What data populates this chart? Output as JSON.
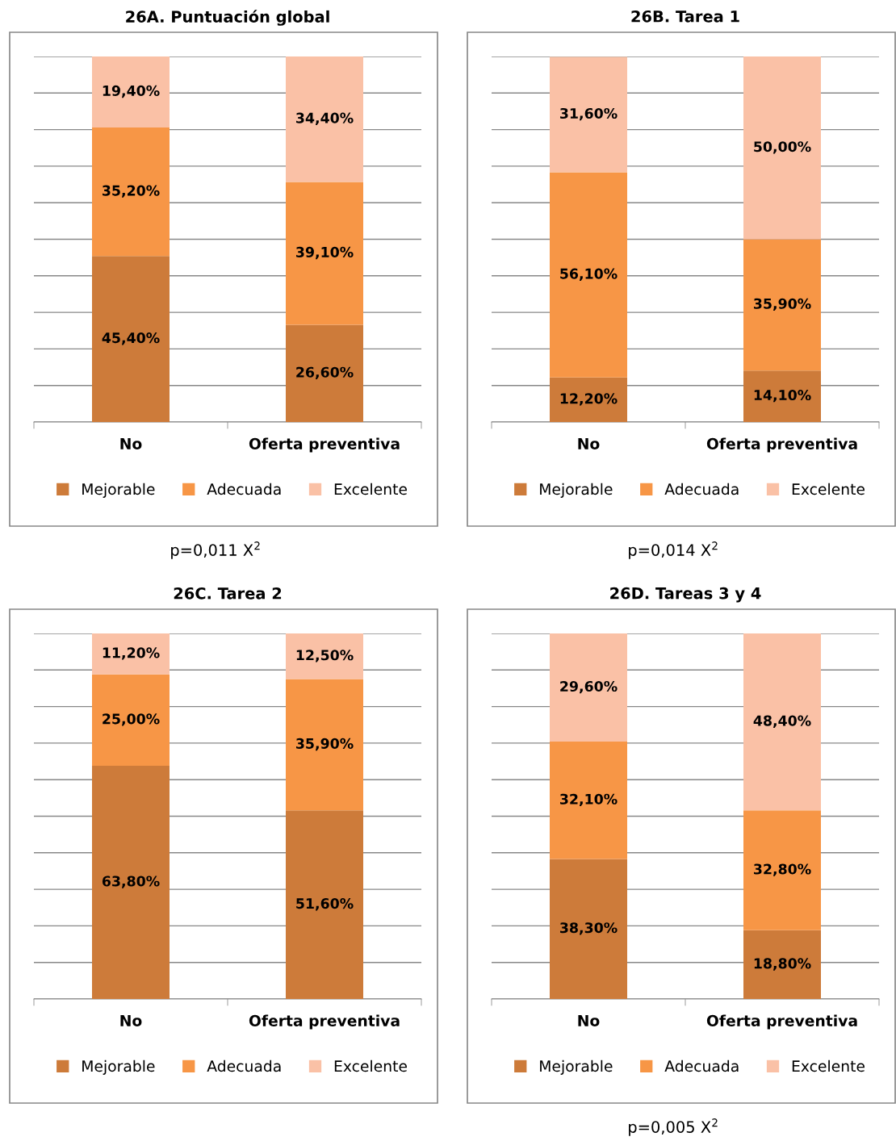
{
  "chart_data": [
    {
      "type": "bar",
      "stacked": true,
      "title": "26A. Puntuación global",
      "categories": [
        "No",
        "Oferta preventiva"
      ],
      "ylim": [
        0,
        100
      ],
      "yticks": [
        {
          "value": 0,
          "label": null
        },
        {
          "value": 10,
          "label": null
        },
        {
          "value": 20,
          "label": null
        },
        {
          "value": 30,
          "label": null
        },
        {
          "value": 40,
          "label": null
        },
        {
          "value": 50,
          "label": null
        },
        {
          "value": 60,
          "label": null
        },
        {
          "value": 70,
          "label": null
        },
        {
          "value": 80,
          "label": null
        },
        {
          "value": 90,
          "label": null
        },
        {
          "value": 100,
          "label": null
        }
      ],
      "grid": "y",
      "legend": "bottom",
      "data_labels": true,
      "series": [
        {
          "name": "Mejorable",
          "color": "#cd7b3a",
          "values": [
            45.4,
            26.6
          ],
          "value_labels": [
            "45,40%",
            "26,60%"
          ]
        },
        {
          "name": "Adecuada",
          "color": "#f79646",
          "values": [
            35.2,
            39.1
          ],
          "value_labels": [
            "35,20%",
            "39,10%"
          ]
        },
        {
          "name": "Excelente",
          "color": "#fac1a6",
          "values": [
            19.4,
            34.4
          ],
          "value_labels": [
            "19,40%",
            "34,40%"
          ]
        }
      ],
      "annotations": [
        "p=0,011 X$^{2}$"
      ]
    },
    {
      "type": "bar",
      "stacked": true,
      "title": "26B. Tarea 1",
      "categories": [
        "No",
        "Oferta preventiva"
      ],
      "ylim": [
        0,
        100
      ],
      "yticks": [
        {
          "value": 0,
          "label": null
        },
        {
          "value": 10,
          "label": null
        },
        {
          "value": 20,
          "label": null
        },
        {
          "value": 30,
          "label": null
        },
        {
          "value": 40,
          "label": null
        },
        {
          "value": 50,
          "label": null
        },
        {
          "value": 60,
          "label": null
        },
        {
          "value": 70,
          "label": null
        },
        {
          "value": 80,
          "label": null
        },
        {
          "value": 90,
          "label": null
        },
        {
          "value": 100,
          "label": null
        }
      ],
      "grid": "y",
      "legend": "bottom",
      "data_labels": true,
      "series": [
        {
          "name": "Mejorable",
          "color": "#cd7b3a",
          "values": [
            12.2,
            14.1
          ],
          "value_labels": [
            "12,20%",
            "14,10%"
          ]
        },
        {
          "name": "Adecuada",
          "color": "#f79646",
          "values": [
            56.1,
            35.9
          ],
          "value_labels": [
            "56,10%",
            "35,90%"
          ]
        },
        {
          "name": "Excelente",
          "color": "#fac1a6",
          "values": [
            31.6,
            50.0
          ],
          "value_labels": [
            "31,60%",
            "50,00%"
          ]
        }
      ],
      "annotations": [
        "p=0,014 X$^{2}$"
      ]
    },
    {
      "type": "bar",
      "stacked": true,
      "title": "26C. Tarea 2",
      "categories": [
        "No",
        "Oferta preventiva"
      ],
      "ylim": [
        0,
        100
      ],
      "yticks": [
        {
          "value": 0,
          "label": null
        },
        {
          "value": 10,
          "label": null
        },
        {
          "value": 20,
          "label": null
        },
        {
          "value": 30,
          "label": null
        },
        {
          "value": 40,
          "label": null
        },
        {
          "value": 50,
          "label": null
        },
        {
          "value": 60,
          "label": null
        },
        {
          "value": 70,
          "label": null
        },
        {
          "value": 80,
          "label": null
        },
        {
          "value": 90,
          "label": null
        },
        {
          "value": 100,
          "label": null
        }
      ],
      "grid": "y",
      "legend": "bottom",
      "data_labels": true,
      "series": [
        {
          "name": "Mejorable",
          "color": "#cd7b3a",
          "values": [
            63.8,
            51.6
          ],
          "value_labels": [
            "63,80%",
            "51,60%"
          ]
        },
        {
          "name": "Adecuada",
          "color": "#f79646",
          "values": [
            25.0,
            35.9
          ],
          "value_labels": [
            "25,00%",
            "35,90%"
          ]
        },
        {
          "name": "Excelente",
          "color": "#fac1a6",
          "values": [
            11.2,
            12.5
          ],
          "value_labels": [
            "11,20%",
            "12,50%"
          ]
        }
      ]
    },
    {
      "type": "bar",
      "stacked": true,
      "title": "26D. Tareas 3 y 4",
      "categories": [
        "No",
        "Oferta preventiva"
      ],
      "ylim": [
        0,
        100
      ],
      "yticks": [
        {
          "value": 0,
          "label": null
        },
        {
          "value": 10,
          "label": null
        },
        {
          "value": 20,
          "label": null
        },
        {
          "value": 30,
          "label": null
        },
        {
          "value": 40,
          "label": null
        },
        {
          "value": 50,
          "label": null
        },
        {
          "value": 60,
          "label": null
        },
        {
          "value": 70,
          "label": null
        },
        {
          "value": 80,
          "label": null
        },
        {
          "value": 90,
          "label": null
        },
        {
          "value": 100,
          "label": null
        }
      ],
      "grid": "y",
      "legend": "bottom",
      "data_labels": true,
      "series": [
        {
          "name": "Mejorable",
          "color": "#cd7b3a",
          "values": [
            38.3,
            18.8
          ],
          "value_labels": [
            "38,30%",
            "18,80%"
          ]
        },
        {
          "name": "Adecuada",
          "color": "#f79646",
          "values": [
            32.1,
            32.8
          ],
          "value_labels": [
            "32,10%",
            "32,80%"
          ]
        },
        {
          "name": "Excelente",
          "color": "#fac1a6",
          "values": [
            29.6,
            48.4
          ],
          "value_labels": [
            "29,60%",
            "48,40%"
          ]
        }
      ],
      "annotations": [
        "p=0,005 X$^{2}$"
      ]
    }
  ]
}
